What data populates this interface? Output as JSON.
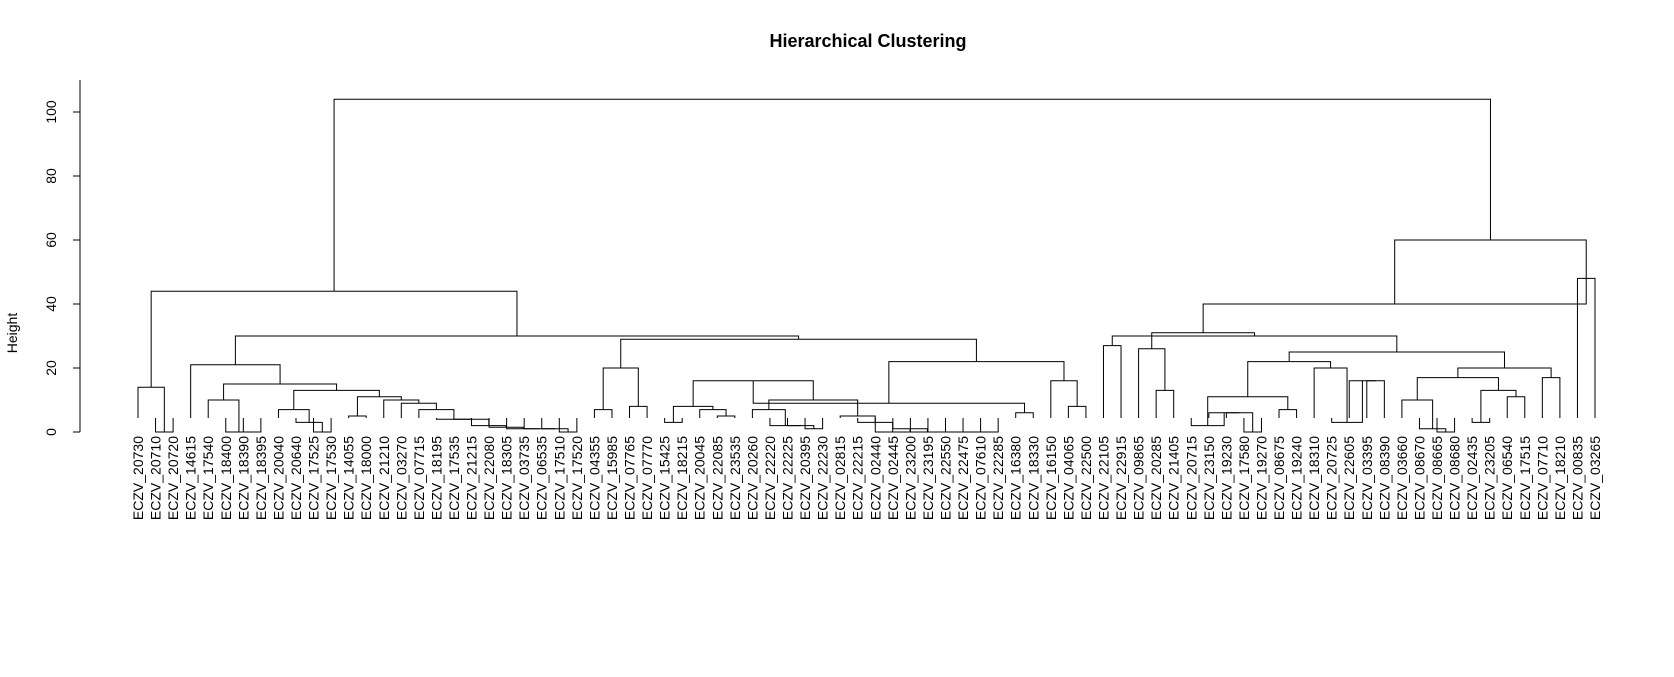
{
  "chart_data": {
    "type": "dendrogram",
    "title": "Hierarchical Clustering",
    "ylabel": "Height",
    "xlabel": "",
    "ylim": [
      0,
      110
    ],
    "yticks": [
      0,
      20,
      40,
      60,
      80,
      100
    ],
    "leaves": [
      "ECZV_20730",
      "ECZV_20710",
      "ECZV_20720",
      "ECZV_14615",
      "ECZV_17540",
      "ECZV_18400",
      "ECZV_18390",
      "ECZV_18395",
      "ECZV_20040",
      "ECZV_20640",
      "ECZV_17525",
      "ECZV_17530",
      "ECZV_14055",
      "ECZV_18000",
      "ECZV_21210",
      "ECZV_03270",
      "ECZV_07715",
      "ECZV_18195",
      "ECZV_17535",
      "ECZV_21215",
      "ECZV_22080",
      "ECZV_18305",
      "ECZV_03735",
      "ECZV_06535",
      "ECZV_17510",
      "ECZV_17520",
      "ECZV_04355",
      "ECZV_15985",
      "ECZV_07765",
      "ECZV_07770",
      "ECZV_15425",
      "ECZV_18215",
      "ECZV_20045",
      "ECZV_22085",
      "ECZV_23535",
      "ECZV_20260",
      "ECZV_22220",
      "ECZV_22225",
      "ECZV_20395",
      "ECZV_22230",
      "ECZV_02815",
      "ECZV_22215",
      "ECZV_02440",
      "ECZV_02445",
      "ECZV_23200",
      "ECZV_23195",
      "ECZV_22550",
      "ECZV_22475",
      "ECZV_07610",
      "ECZV_22285",
      "ECZV_16380",
      "ECZV_18330",
      "ECZV_16150",
      "ECZV_04065",
      "ECZV_22500",
      "ECZV_22105",
      "ECZV_22915",
      "ECZV_09865",
      "ECZV_20285",
      "ECZV_21405",
      "ECZV_20715",
      "ECZV_23150",
      "ECZV_19230",
      "ECZV_17580",
      "ECZV_19270",
      "ECZV_08675",
      "ECZV_19240",
      "ECZV_18310",
      "ECZV_20725",
      "ECZV_22605",
      "ECZV_03395",
      "ECZV_08390",
      "ECZV_03660",
      "ECZV_08670",
      "ECZV_08665",
      "ECZV_08680",
      "ECZV_02435",
      "ECZV_23205",
      "ECZV_06540",
      "ECZV_17515",
      "ECZV_07710",
      "ECZV_18210",
      "ECZV_00835",
      "ECZV_03265"
    ],
    "merges": [
      {
        "a": "L1",
        "b": "L2",
        "h": 0
      },
      {
        "a": "L0",
        "b": "N0",
        "h": 14
      },
      {
        "a": "L6",
        "b": "L7",
        "h": 0
      },
      {
        "a": "L5",
        "b": "N2",
        "h": 0
      },
      {
        "a": "L4",
        "b": "N3",
        "h": 10
      },
      {
        "a": "L10",
        "b": "L11",
        "h": 0
      },
      {
        "a": "L9",
        "b": "N5",
        "h": 3
      },
      {
        "a": "L8",
        "b": "N6",
        "h": 7
      },
      {
        "a": "L12",
        "b": "L13",
        "h": 5
      },
      {
        "a": "L24",
        "b": "L25",
        "h": 0
      },
      {
        "a": "L23",
        "b": "N9",
        "h": 1
      },
      {
        "a": "L22",
        "b": "N10",
        "h": 1
      },
      {
        "a": "L21",
        "b": "N11",
        "h": 1
      },
      {
        "a": "L20",
        "b": "N12",
        "h": 1.5
      },
      {
        "a": "L19",
        "b": "N13",
        "h": 2
      },
      {
        "a": "L18",
        "b": "N14",
        "h": 4
      },
      {
        "a": "L17",
        "b": "N15",
        "h": 4
      },
      {
        "a": "L16",
        "b": "N16",
        "h": 7
      },
      {
        "a": "L15",
        "b": "N17",
        "h": 9
      },
      {
        "a": "L14",
        "b": "N18",
        "h": 10
      },
      {
        "a": "N8",
        "b": "N19",
        "h": 11
      },
      {
        "a": "N7",
        "b": "N20",
        "h": 13
      },
      {
        "a": "N4",
        "b": "N21",
        "h": 15
      },
      {
        "a": "L3",
        "b": "N22",
        "h": 21
      },
      {
        "a": "L26",
        "b": "L27",
        "h": 7
      },
      {
        "a": "L28",
        "b": "L29",
        "h": 8
      },
      {
        "a": "N24",
        "b": "N25",
        "h": 20
      },
      {
        "a": "L30",
        "b": "L31",
        "h": 3
      },
      {
        "a": "L33",
        "b": "L34",
        "h": 5
      },
      {
        "a": "L32",
        "b": "N28",
        "h": 7
      },
      {
        "a": "N27",
        "b": "N29",
        "h": 8
      },
      {
        "a": "L38",
        "b": "L39",
        "h": 1
      },
      {
        "a": "L37",
        "b": "N31",
        "h": 2
      },
      {
        "a": "L36",
        "b": "N32",
        "h": 2
      },
      {
        "a": "L35",
        "b": "N33",
        "h": 7
      },
      {
        "a": "L48",
        "b": "L49",
        "h": 0
      },
      {
        "a": "L47",
        "b": "N35",
        "h": 0
      },
      {
        "a": "L46",
        "b": "N36",
        "h": 0
      },
      {
        "a": "L45",
        "b": "N37",
        "h": 0
      },
      {
        "a": "L44",
        "b": "N38",
        "h": 0
      },
      {
        "a": "L43",
        "b": "N39",
        "h": 1
      },
      {
        "a": "L42",
        "b": "N40",
        "h": 0
      },
      {
        "a": "L41",
        "b": "N41",
        "h": 3
      },
      {
        "a": "L40",
        "b": "N42",
        "h": 5
      },
      {
        "a": "N34",
        "b": "N43",
        "h": 10
      },
      {
        "a": "N30",
        "b": "N44",
        "h": 16
      },
      {
        "a": "L50",
        "b": "L51",
        "h": 6
      },
      {
        "a": "N45",
        "b": "N46",
        "h": 9
      },
      {
        "a": "L53",
        "b": "L54",
        "h": 8
      },
      {
        "a": "L52",
        "b": "N48",
        "h": 16
      },
      {
        "a": "N47",
        "b": "N49",
        "h": 22
      },
      {
        "a": "N26",
        "b": "N50",
        "h": 29
      },
      {
        "a": "N23",
        "b": "N51",
        "h": 30
      },
      {
        "a": "N1",
        "b": "N52",
        "h": 44
      },
      {
        "a": "L55",
        "b": "L56",
        "h": 27
      },
      {
        "a": "L58",
        "b": "L59",
        "h": 13
      },
      {
        "a": "L57",
        "b": "N55",
        "h": 26
      },
      {
        "a": "L63",
        "b": "L64",
        "h": 0
      },
      {
        "a": "L62",
        "b": "N57",
        "h": 6
      },
      {
        "a": "L61",
        "b": "N58",
        "h": 6
      },
      {
        "a": "L60",
        "b": "N59",
        "h": 2
      },
      {
        "a": "L65",
        "b": "L66",
        "h": 7
      },
      {
        "a": "N60",
        "b": "N61",
        "h": 11
      },
      {
        "a": "L70",
        "b": "L71",
        "h": 16
      },
      {
        "a": "L69",
        "b": "N63",
        "h": 16
      },
      {
        "a": "L68",
        "b": "N64",
        "h": 3
      },
      {
        "a": "L67",
        "b": "N65",
        "h": 20
      },
      {
        "a": "N62",
        "b": "N66",
        "h": 22
      },
      {
        "a": "L74",
        "b": "L75",
        "h": 0
      },
      {
        "a": "L73",
        "b": "N68",
        "h": 1
      },
      {
        "a": "L72",
        "b": "N69",
        "h": 10
      },
      {
        "a": "L76",
        "b": "L77",
        "h": 3
      },
      {
        "a": "L78",
        "b": "L79",
        "h": 11
      },
      {
        "a": "N71",
        "b": "N72",
        "h": 13
      },
      {
        "a": "N70",
        "b": "N73",
        "h": 17
      },
      {
        "a": "L80",
        "b": "L81",
        "h": 17
      },
      {
        "a": "N74",
        "b": "N75",
        "h": 20
      },
      {
        "a": "N67",
        "b": "N76",
        "h": 25
      },
      {
        "a": "N67b",
        "b": "N77",
        "h": 30
      },
      {
        "a": "N56",
        "b": "N78",
        "h": 31
      },
      {
        "a": "L82",
        "b": "L83",
        "h": 48
      },
      {
        "a": "N79",
        "b": "N80",
        "h": 40
      },
      {
        "a": "N81",
        "b": "N80b",
        "h": 60
      },
      {
        "a": "N53",
        "b": "N82",
        "h": 104
      }
    ]
  }
}
